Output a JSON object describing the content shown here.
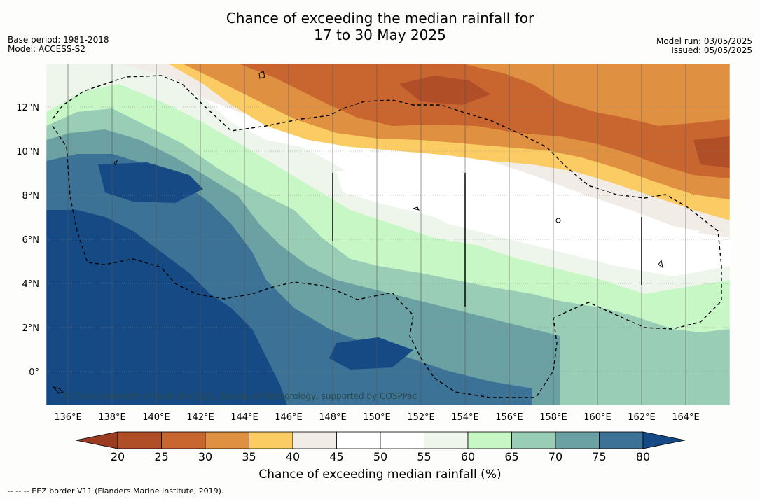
{
  "title_line1": "Chance of exceeding the median rainfall for",
  "title_line2": "17 to 30 May 2025",
  "meta_left": {
    "base_period": "Base period: 1981-2018",
    "model": "Model: ACCESS-S2"
  },
  "meta_right": {
    "model_run": "Model run: 03/05/2025",
    "issued": "Issued: 05/05/2025"
  },
  "map": {
    "lon_labels": [
      "136°E",
      "138°E",
      "140°E",
      "142°E",
      "144°E",
      "146°E",
      "148°E",
      "150°E",
      "152°E",
      "154°E",
      "156°E",
      "158°E",
      "160°E",
      "162°E",
      "164°E"
    ],
    "lat_labels": [
      "12°N",
      "10°N",
      "8°N",
      "6°N",
      "4°N",
      "2°N",
      "0°"
    ],
    "copyright": "© Commonwealth of Australia 2025, Bureau of Meteorology, supported by COSPPac"
  },
  "colorbar": {
    "ticks": [
      "20",
      "25",
      "30",
      "35",
      "40",
      "45",
      "50",
      "55",
      "60",
      "65",
      "70",
      "75",
      "80"
    ],
    "colors": [
      "#9b3b1f",
      "#b04e27",
      "#c9652f",
      "#df9040",
      "#fccc64",
      "#f1ece6",
      "#ffffff",
      "#ffffff",
      "#eef6ec",
      "#c8f7c6",
      "#9acdb6",
      "#6ba1a3",
      "#3c7296",
      "#154a85"
    ],
    "title": "Chance of exceeding median rainfall (%)"
  },
  "eez_note": "--  --  -- EEZ border V11 (Flanders Marine Institute, 2019)."
}
